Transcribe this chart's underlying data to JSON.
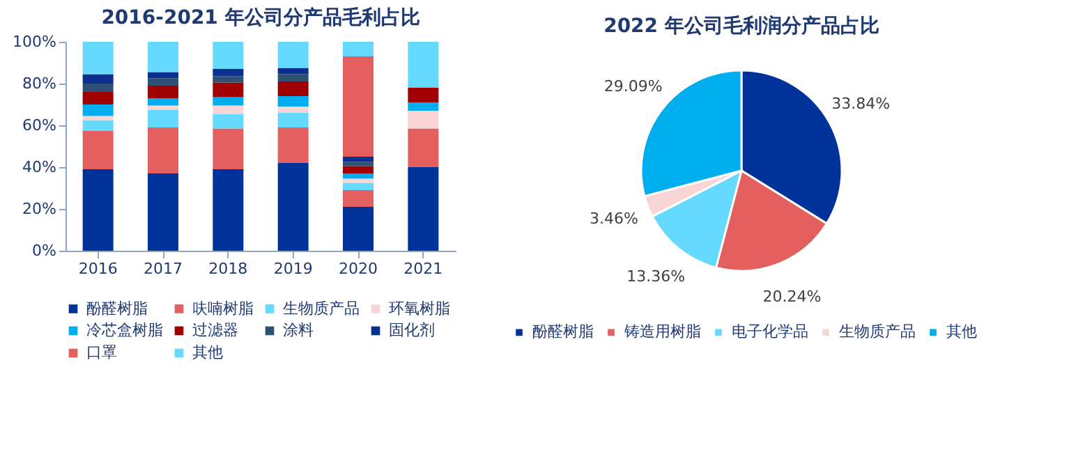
{
  "chart_data": [
    {
      "type": "bar",
      "title": "2016-2021 年公司分产品毛利占比",
      "stacked": true,
      "legend": "bottom",
      "grid": false,
      "categories": [
        "2016",
        "2017",
        "2018",
        "2019",
        "2020",
        "2021"
      ],
      "ylim": [
        0,
        100
      ],
      "yticks": [
        {
          "value": 0,
          "label": "0%"
        },
        {
          "value": 20,
          "label": "20%"
        },
        {
          "value": 40,
          "label": "40%"
        },
        {
          "value": 60,
          "label": "60%"
        },
        {
          "value": 80,
          "label": "80%"
        },
        {
          "value": 100,
          "label": "100%"
        }
      ],
      "series": [
        {
          "name": "酚醛树脂",
          "color": "#003399",
          "values": [
            39,
            37,
            39,
            42,
            21,
            40
          ]
        },
        {
          "name": "呋喃树脂",
          "color": "#e46060",
          "values": [
            18.5,
            22,
            19.5,
            17,
            8,
            18.5
          ]
        },
        {
          "name": "生物质产品",
          "color": "#66d9ff",
          "values": [
            5,
            8.5,
            7,
            7,
            3.5,
            0
          ]
        },
        {
          "name": "环氧树脂",
          "color": "#f9d6d6",
          "values": [
            2,
            2,
            4,
            3,
            2,
            8.5
          ]
        },
        {
          "name": "冷芯盒树脂",
          "color": "#00aeef",
          "values": [
            5.5,
            3.5,
            4,
            5,
            2.5,
            4
          ]
        },
        {
          "name": "过滤器",
          "color": "#a00000",
          "values": [
            6,
            6,
            7,
            7,
            3.5,
            7
          ]
        },
        {
          "name": "涂料",
          "color": "#2e5173",
          "values": [
            4,
            3.5,
            3,
            3.5,
            2,
            0
          ]
        },
        {
          "name": "固化剂",
          "color": "#0a2f8f",
          "values": [
            4.5,
            3,
            3.5,
            3,
            2.5,
            0
          ]
        },
        {
          "name": "口罩",
          "color": "#e46060",
          "values": [
            0,
            0,
            0,
            0,
            48,
            0
          ]
        },
        {
          "name": "其他",
          "color": "#66d9ff",
          "values": [
            15.5,
            14.5,
            13,
            12.5,
            7,
            22
          ]
        }
      ]
    },
    {
      "type": "pie",
      "title": "2022 年公司毛利润分产品占比",
      "legend": "bottom",
      "categories": [
        "酚醛树脂",
        "铸造用树脂",
        "电子化学品",
        "生物质产品",
        "其他"
      ],
      "values": [
        33.84,
        20.24,
        13.36,
        3.46,
        29.09
      ],
      "colors": [
        "#003399",
        "#e46060",
        "#66d9ff",
        "#f9d6d6",
        "#00aeef"
      ],
      "value_labels": [
        "33.84%",
        "20.24%",
        "13.36%",
        "3.46%",
        "29.09%"
      ]
    }
  ]
}
